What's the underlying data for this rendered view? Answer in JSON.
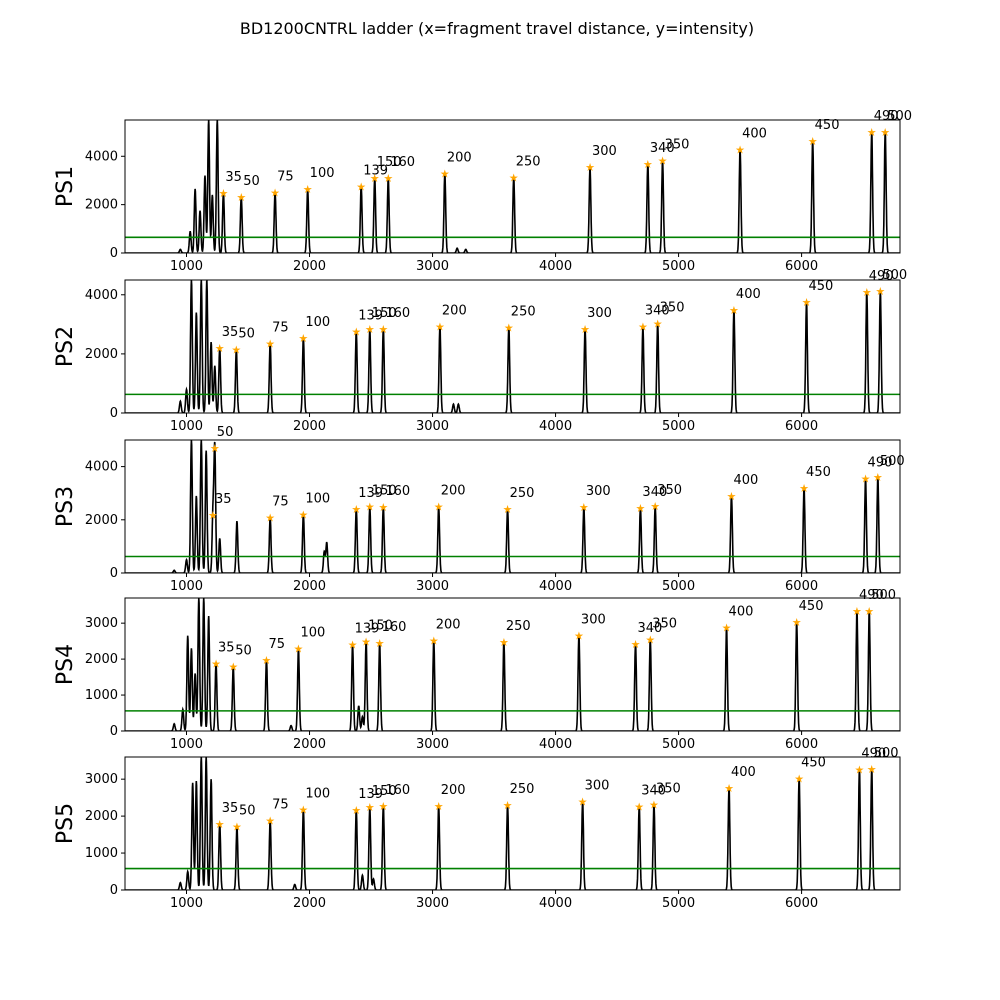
{
  "chart_data": {
    "type": "line",
    "title": "BD1200CNTRL ladder (x=fragment travel distance, y=intensity)",
    "xlim": [
      500,
      6800
    ],
    "x_ticks": [
      1000,
      2000,
      3000,
      4000,
      5000,
      6000
    ],
    "threshold_color": "#008000",
    "trace_color": "#000000",
    "marker_color": "#ffa500",
    "panels": [
      {
        "name": "PS1",
        "ylim": [
          0,
          5500
        ],
        "y_ticks": [
          0,
          2000,
          4000
        ],
        "threshold": 650,
        "markers": [
          {
            "label": "35",
            "x": 1300,
            "y": 2480
          },
          {
            "label": "50",
            "x": 1445,
            "y": 2320
          },
          {
            "label": "75",
            "x": 1720,
            "y": 2510
          },
          {
            "label": "100",
            "x": 1985,
            "y": 2650
          },
          {
            "label": "139",
            "x": 2420,
            "y": 2760
          },
          {
            "label": "150",
            "x": 2530,
            "y": 3100
          },
          {
            "label": "160",
            "x": 2640,
            "y": 3100
          },
          {
            "label": "200",
            "x": 3100,
            "y": 3280
          },
          {
            "label": "250",
            "x": 3660,
            "y": 3130
          },
          {
            "label": "300",
            "x": 4280,
            "y": 3550
          },
          {
            "label": "340",
            "x": 4750,
            "y": 3680
          },
          {
            "label": "350",
            "x": 4870,
            "y": 3820
          },
          {
            "label": "400",
            "x": 5500,
            "y": 4280
          },
          {
            "label": "450",
            "x": 6090,
            "y": 4640
          },
          {
            "label": "490",
            "x": 6570,
            "y": 5000
          },
          {
            "label": "500",
            "x": 6680,
            "y": 5000
          }
        ],
        "extra_peaks": [
          {
            "x": 950,
            "y": 150
          },
          {
            "x": 1030,
            "y": 900
          },
          {
            "x": 1070,
            "y": 2650
          },
          {
            "x": 1110,
            "y": 1750
          },
          {
            "x": 1150,
            "y": 3200
          },
          {
            "x": 1180,
            "y": 5500
          },
          {
            "x": 1210,
            "y": 2400
          },
          {
            "x": 1250,
            "y": 5500
          },
          {
            "x": 3200,
            "y": 200
          },
          {
            "x": 3270,
            "y": 150
          }
        ]
      },
      {
        "name": "PS2",
        "ylim": [
          0,
          4500
        ],
        "y_ticks": [
          0,
          2000,
          4000
        ],
        "threshold": 630,
        "markers": [
          {
            "label": "35",
            "x": 1270,
            "y": 2200
          },
          {
            "label": "50",
            "x": 1405,
            "y": 2150
          },
          {
            "label": "75",
            "x": 1680,
            "y": 2350
          },
          {
            "label": "100",
            "x": 1950,
            "y": 2540
          },
          {
            "label": "139",
            "x": 2380,
            "y": 2750
          },
          {
            "label": "150",
            "x": 2490,
            "y": 2850
          },
          {
            "label": "160",
            "x": 2600,
            "y": 2850
          },
          {
            "label": "200",
            "x": 3060,
            "y": 2920
          },
          {
            "label": "250",
            "x": 3620,
            "y": 2900
          },
          {
            "label": "300",
            "x": 4240,
            "y": 2850
          },
          {
            "label": "340",
            "x": 4710,
            "y": 2920
          },
          {
            "label": "350",
            "x": 4830,
            "y": 3030
          },
          {
            "label": "400",
            "x": 5450,
            "y": 3480
          },
          {
            "label": "450",
            "x": 6040,
            "y": 3750
          },
          {
            "label": "490",
            "x": 6530,
            "y": 4100
          },
          {
            "label": "500",
            "x": 6640,
            "y": 4120
          }
        ],
        "extra_peaks": [
          {
            "x": 950,
            "y": 400
          },
          {
            "x": 1000,
            "y": 800
          },
          {
            "x": 1040,
            "y": 4500
          },
          {
            "x": 1080,
            "y": 3400
          },
          {
            "x": 1120,
            "y": 4500
          },
          {
            "x": 1165,
            "y": 4500
          },
          {
            "x": 1200,
            "y": 2400
          },
          {
            "x": 1230,
            "y": 1600
          },
          {
            "x": 3170,
            "y": 300
          },
          {
            "x": 3210,
            "y": 300
          }
        ]
      },
      {
        "name": "PS3",
        "ylim": [
          0,
          5000
        ],
        "y_ticks": [
          0,
          2000,
          4000
        ],
        "threshold": 620,
        "markers": [
          {
            "label": "35",
            "x": 1215,
            "y": 2180
          },
          {
            "label": "50",
            "x": 1230,
            "y": 4700
          },
          {
            "label": "75",
            "x": 1680,
            "y": 2080
          },
          {
            "label": "100",
            "x": 1950,
            "y": 2200
          },
          {
            "label": "139",
            "x": 2380,
            "y": 2400
          },
          {
            "label": "150",
            "x": 2490,
            "y": 2500
          },
          {
            "label": "160",
            "x": 2600,
            "y": 2480
          },
          {
            "label": "200",
            "x": 3050,
            "y": 2500
          },
          {
            "label": "250",
            "x": 3610,
            "y": 2400
          },
          {
            "label": "300",
            "x": 4230,
            "y": 2480
          },
          {
            "label": "340",
            "x": 4690,
            "y": 2450
          },
          {
            "label": "350",
            "x": 4810,
            "y": 2520
          },
          {
            "label": "400",
            "x": 5430,
            "y": 2900
          },
          {
            "label": "450",
            "x": 6020,
            "y": 3200
          },
          {
            "label": "490",
            "x": 6520,
            "y": 3550
          },
          {
            "label": "500",
            "x": 6620,
            "y": 3600
          }
        ],
        "extra_peaks": [
          {
            "x": 900,
            "y": 100
          },
          {
            "x": 1000,
            "y": 500
          },
          {
            "x": 1040,
            "y": 5000
          },
          {
            "x": 1080,
            "y": 2900
          },
          {
            "x": 1120,
            "y": 5000
          },
          {
            "x": 1160,
            "y": 4600
          },
          {
            "x": 1270,
            "y": 1300
          },
          {
            "x": 1410,
            "y": 1950
          },
          {
            "x": 2120,
            "y": 800
          },
          {
            "x": 2140,
            "y": 1150
          }
        ]
      },
      {
        "name": "PS4",
        "ylim": [
          0,
          3700
        ],
        "y_ticks": [
          0,
          1000,
          2000,
          3000
        ],
        "threshold": 560,
        "markers": [
          {
            "label": "35",
            "x": 1240,
            "y": 1880
          },
          {
            "label": "50",
            "x": 1380,
            "y": 1790
          },
          {
            "label": "75",
            "x": 1650,
            "y": 1980
          },
          {
            "label": "100",
            "x": 1910,
            "y": 2290
          },
          {
            "label": "139",
            "x": 2350,
            "y": 2400
          },
          {
            "label": "150",
            "x": 2460,
            "y": 2490
          },
          {
            "label": "160",
            "x": 2570,
            "y": 2450
          },
          {
            "label": "200",
            "x": 3010,
            "y": 2520
          },
          {
            "label": "250",
            "x": 3580,
            "y": 2480
          },
          {
            "label": "300",
            "x": 4190,
            "y": 2660
          },
          {
            "label": "340",
            "x": 4650,
            "y": 2420
          },
          {
            "label": "350",
            "x": 4770,
            "y": 2540
          },
          {
            "label": "400",
            "x": 5390,
            "y": 2880
          },
          {
            "label": "450",
            "x": 5960,
            "y": 3030
          },
          {
            "label": "490",
            "x": 6450,
            "y": 3340
          },
          {
            "label": "500",
            "x": 6550,
            "y": 3340
          }
        ],
        "extra_peaks": [
          {
            "x": 900,
            "y": 200
          },
          {
            "x": 970,
            "y": 600
          },
          {
            "x": 1010,
            "y": 2650
          },
          {
            "x": 1040,
            "y": 2300
          },
          {
            "x": 1070,
            "y": 1600
          },
          {
            "x": 1100,
            "y": 3700
          },
          {
            "x": 1140,
            "y": 3700
          },
          {
            "x": 1180,
            "y": 3200
          },
          {
            "x": 1850,
            "y": 150
          },
          {
            "x": 2400,
            "y": 700
          },
          {
            "x": 2430,
            "y": 400
          }
        ]
      },
      {
        "name": "PS5",
        "ylim": [
          0,
          3600
        ],
        "y_ticks": [
          0,
          1000,
          2000,
          3000
        ],
        "threshold": 580,
        "markers": [
          {
            "label": "35",
            "x": 1270,
            "y": 1790
          },
          {
            "label": "50",
            "x": 1410,
            "y": 1720
          },
          {
            "label": "75",
            "x": 1680,
            "y": 1880
          },
          {
            "label": "100",
            "x": 1950,
            "y": 2180
          },
          {
            "label": "139",
            "x": 2380,
            "y": 2160
          },
          {
            "label": "150",
            "x": 2490,
            "y": 2250
          },
          {
            "label": "160",
            "x": 2600,
            "y": 2280
          },
          {
            "label": "200",
            "x": 3050,
            "y": 2280
          },
          {
            "label": "250",
            "x": 3610,
            "y": 2300
          },
          {
            "label": "300",
            "x": 4220,
            "y": 2390
          },
          {
            "label": "340",
            "x": 4680,
            "y": 2260
          },
          {
            "label": "350",
            "x": 4800,
            "y": 2310
          },
          {
            "label": "400",
            "x": 5410,
            "y": 2760
          },
          {
            "label": "450",
            "x": 5980,
            "y": 3020
          },
          {
            "label": "490",
            "x": 6470,
            "y": 3260
          },
          {
            "label": "500",
            "x": 6570,
            "y": 3280
          }
        ],
        "extra_peaks": [
          {
            "x": 950,
            "y": 200
          },
          {
            "x": 1010,
            "y": 500
          },
          {
            "x": 1050,
            "y": 2900
          },
          {
            "x": 1080,
            "y": 2950
          },
          {
            "x": 1120,
            "y": 3600
          },
          {
            "x": 1160,
            "y": 3600
          },
          {
            "x": 1200,
            "y": 3000
          },
          {
            "x": 1880,
            "y": 150
          },
          {
            "x": 2430,
            "y": 400
          },
          {
            "x": 2520,
            "y": 300
          }
        ]
      }
    ]
  }
}
